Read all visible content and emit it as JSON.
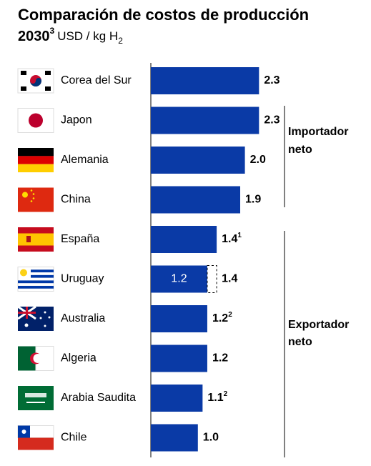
{
  "chart_data": {
    "type": "bar",
    "title": "Comparación de costos de producción",
    "title_line2": "2030",
    "title_footnote": "3",
    "unit": "USD / kg H",
    "unit_subscript": "2",
    "categories": [
      "Corea del Sur",
      "Japon",
      "Alemania",
      "China",
      "España",
      "Uruguay",
      "Australia",
      "Algeria",
      "Arabia Saudita",
      "Chile"
    ],
    "values": [
      2.3,
      2.3,
      2.0,
      1.9,
      1.4,
      1.2,
      1.2,
      1.2,
      1.1,
      1.0
    ],
    "value_labels": [
      "2.3",
      "2.3",
      "2.0",
      "1.9",
      "1.4",
      "1.2",
      "1.2",
      "1.2",
      "1.1",
      "1.0"
    ],
    "footnotes": [
      null,
      null,
      null,
      null,
      "1",
      null,
      "2",
      null,
      "2",
      null
    ],
    "extension": {
      "values": [
        null,
        null,
        null,
        null,
        null,
        1.4,
        null,
        null,
        null,
        null
      ],
      "value_labels": [
        null,
        null,
        null,
        null,
        null,
        "1.4",
        null,
        null,
        null,
        null
      ]
    },
    "color": "#0a3aa6",
    "groups": [
      {
        "lines": [
          "Importador",
          "neto"
        ]
      },
      {
        "lines": [
          "Exportador",
          "neto"
        ]
      }
    ]
  }
}
